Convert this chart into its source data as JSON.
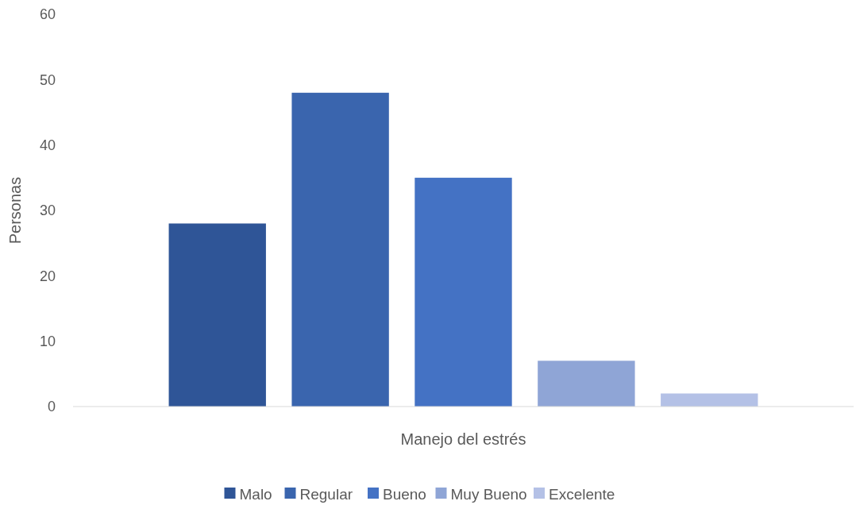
{
  "chart_data": {
    "type": "bar",
    "categories": [
      "Manejo del estrés"
    ],
    "ylabel": "Personas",
    "series": [
      {
        "name": "Malo",
        "color": "#2f5597",
        "values": [
          28
        ]
      },
      {
        "name": "Regular",
        "color": "#3a65ae",
        "values": [
          48
        ]
      },
      {
        "name": "Bueno",
        "color": "#4472c4",
        "values": [
          35
        ]
      },
      {
        "name": "Muy Bueno",
        "color": "#8fa5d6",
        "values": [
          7
        ]
      },
      {
        "name": "Excelente",
        "color": "#b4c1e6",
        "values": [
          2
        ]
      }
    ],
    "ylim": [
      0,
      60
    ],
    "yticks": [
      0,
      10,
      20,
      30,
      40,
      50,
      60
    ],
    "grid": false,
    "legend": "bottom"
  }
}
